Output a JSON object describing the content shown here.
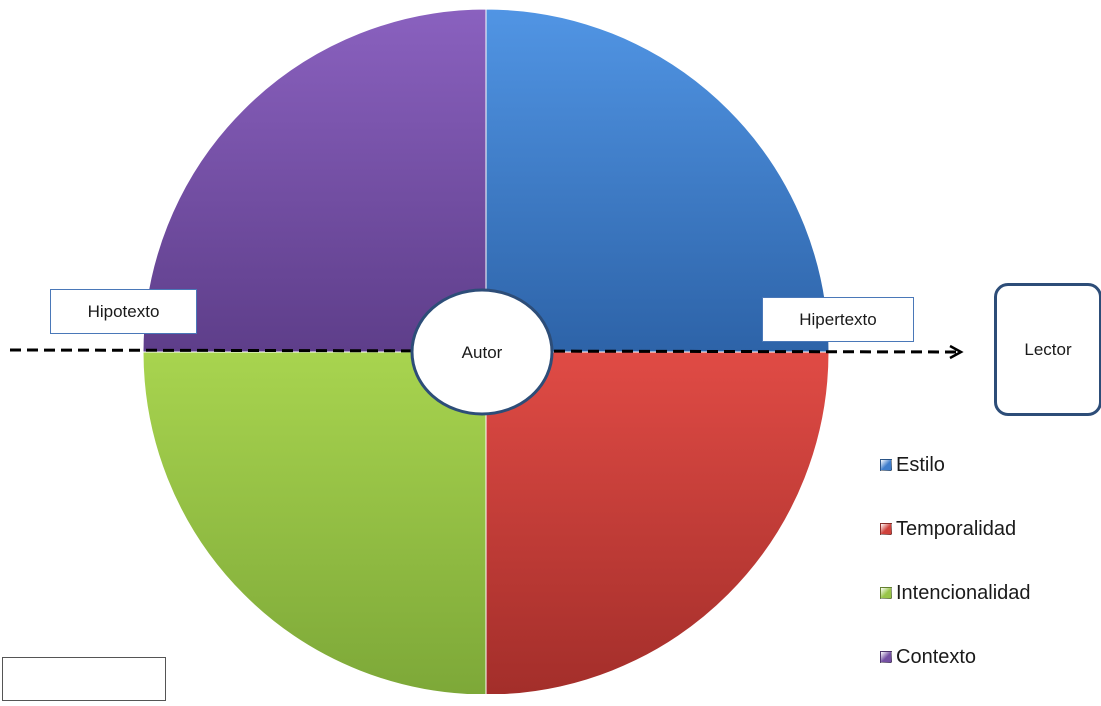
{
  "chart_data": {
    "type": "pie",
    "categories": [
      "Estilo",
      "Temporalidad",
      "Intencionalidad",
      "Contexto"
    ],
    "values": [
      25,
      25,
      25,
      25
    ],
    "colors": [
      "#3f7ecc",
      "#d0423c",
      "#98c548",
      "#744fa3"
    ],
    "legend_position": "right",
    "center_label": "Autor"
  },
  "labels": {
    "hipotexto": "Hipotexto",
    "hipertexto": "Hipertexto",
    "lector": "Lector"
  }
}
